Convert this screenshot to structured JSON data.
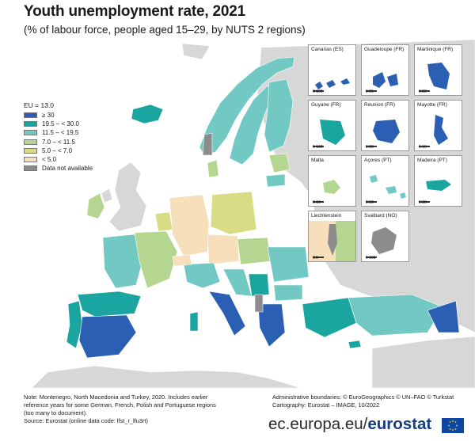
{
  "header": {
    "title": "Youth unemployment rate, 2021",
    "subtitle": "(% of labour force, people aged 15–29, by NUTS 2 regions)"
  },
  "legend": {
    "title": "EU = 13.0",
    "classes": [
      {
        "label": "≥ 30",
        "color": "#2b5fb4"
      },
      {
        "label": "19.5 – < 30.0",
        "color": "#1aa5a0"
      },
      {
        "label": "11.5 – < 19.5",
        "color": "#72c8c3"
      },
      {
        "label": "7.0 – < 11.5",
        "color": "#b4d690"
      },
      {
        "label": "5.0 – < 7.0",
        "color": "#d8dc84"
      },
      {
        "label": "< 5.0",
        "color": "#f7dfbb"
      },
      {
        "label": "Data not available",
        "color": "#8c8c8c"
      }
    ]
  },
  "insets": [
    {
      "label": "Canarias (ES)",
      "class": 1,
      "scale": "0 100"
    },
    {
      "label": "Guadeloupe (FR)",
      "class": 1,
      "scale": "0 25"
    },
    {
      "label": "Martinique (FR)",
      "class": 1,
      "scale": "0 20"
    },
    {
      "label": "Guyane (FR)",
      "class": 2,
      "scale": "0 100"
    },
    {
      "label": "Réunion (FR)",
      "class": 1,
      "scale": "0 20"
    },
    {
      "label": "Mayotte (FR)",
      "class": 1,
      "scale": "0 10"
    },
    {
      "label": "Malta",
      "class": 4,
      "scale": "0 10"
    },
    {
      "label": "Açores (PT)",
      "class": 3,
      "scale": "0 50"
    },
    {
      "label": "Madeira (PT)",
      "class": 2,
      "scale": "0 20"
    },
    {
      "label": "Liechtenstein",
      "class": 6,
      "scale": "0 5"
    },
    {
      "label": "Svalbard (NO)",
      "class": 7,
      "scale": "0 100"
    }
  ],
  "footer": {
    "note_lines": [
      "Note: Montenegro, North Macedonia and Turkey, 2020. Includes earlier",
      "reference years for some German, French, Polish and Portuguese regions",
      "(too many to document).",
      "Source: Eurostat (online data code: lfst_r_lfu3rt)"
    ],
    "credit_lines": [
      "Administrative boundaries: © EuroGeographics © UN–FAO © Turkstat",
      "Cartography: Eurostat – IMAGE, 10/2022"
    ],
    "brand_prefix": "ec.europa.eu/",
    "brand_name": "eurostat"
  },
  "map_colors": {
    "sea": "#ffffff",
    "non_eu": "#d7d7d7",
    "border": "#ffffff"
  }
}
